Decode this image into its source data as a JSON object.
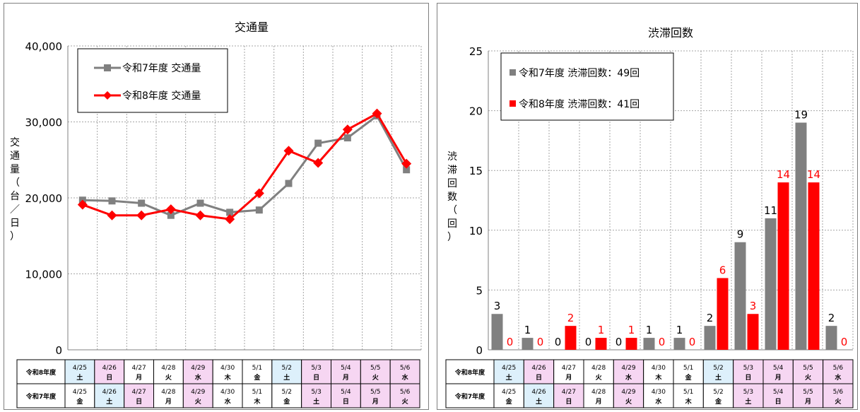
{
  "traffic_chart": {
    "title": "交通量",
    "ylabel": "交通量（台／日）",
    "legend": [
      "令和7年度 交通量",
      "令和8年度 交通量"
    ],
    "yticks": [
      "0",
      "10,000",
      "20,000",
      "30,000",
      "40,000"
    ]
  },
  "congestion_chart": {
    "title": "渋滞回数",
    "ylabel": "渋滞回数（回）",
    "legend": [
      "令和7年度 渋滞回数：49回",
      "令和8年度 渋滞回数：41回"
    ],
    "yticks": [
      "0",
      "5",
      "10",
      "15",
      "20",
      "25"
    ]
  },
  "date_table": {
    "row_labels": [
      "令和8年度",
      "令和7年度"
    ],
    "r8": [
      {
        "d": "4/25",
        "w": "土",
        "bg": "#ddf0fb"
      },
      {
        "d": "4/26",
        "w": "日",
        "bg": "#f6d6f2"
      },
      {
        "d": "4/27",
        "w": "月",
        "bg": "#ffffff"
      },
      {
        "d": "4/28",
        "w": "火",
        "bg": "#ffffff"
      },
      {
        "d": "4/29",
        "w": "水",
        "bg": "#f6d6f2"
      },
      {
        "d": "4/30",
        "w": "木",
        "bg": "#ffffff"
      },
      {
        "d": "5/1",
        "w": "金",
        "bg": "#ffffff"
      },
      {
        "d": "5/2",
        "w": "土",
        "bg": "#ddf0fb"
      },
      {
        "d": "5/3",
        "w": "日",
        "bg": "#f6d6f2"
      },
      {
        "d": "5/4",
        "w": "月",
        "bg": "#f6d6f2"
      },
      {
        "d": "5/5",
        "w": "火",
        "bg": "#f6d6f2"
      },
      {
        "d": "5/6",
        "w": "水",
        "bg": "#f6d6f2"
      }
    ],
    "r7": [
      {
        "d": "4/25",
        "w": "金",
        "bg": "#ffffff"
      },
      {
        "d": "4/26",
        "w": "土",
        "bg": "#ddf0fb"
      },
      {
        "d": "4/27",
        "w": "日",
        "bg": "#f6d6f2"
      },
      {
        "d": "4/28",
        "w": "月",
        "bg": "#ffffff"
      },
      {
        "d": "4/29",
        "w": "火",
        "bg": "#f6d6f2"
      },
      {
        "d": "4/30",
        "w": "水",
        "bg": "#ffffff"
      },
      {
        "d": "5/1",
        "w": "木",
        "bg": "#ffffff"
      },
      {
        "d": "5/2",
        "w": "金",
        "bg": "#ffffff"
      },
      {
        "d": "5/3",
        "w": "土",
        "bg": "#f6d6f2"
      },
      {
        "d": "5/4",
        "w": "日",
        "bg": "#f6d6f2"
      },
      {
        "d": "5/5",
        "w": "月",
        "bg": "#f6d6f2"
      },
      {
        "d": "5/6",
        "w": "火",
        "bg": "#f6d6f2"
      }
    ]
  },
  "colors": {
    "r7": "#808080",
    "r8": "#ff0000",
    "grid": "#a6a6a6"
  },
  "chart_data": [
    {
      "type": "line",
      "title": "交通量",
      "ylabel": "交通量（台／日）",
      "ylim": [
        0,
        40000
      ],
      "grid": true,
      "legend_position": "top-left",
      "series": [
        {
          "name": "令和7年度 交通量",
          "values": [
            19700,
            19600,
            19300,
            17700,
            19300,
            18100,
            18400,
            21900,
            27200,
            27900,
            30800,
            23700
          ]
        },
        {
          "name": "令和8年度 交通量",
          "values": [
            19100,
            17700,
            17700,
            18500,
            17700,
            17200,
            20600,
            26200,
            24600,
            29000,
            31100,
            24500
          ]
        }
      ]
    },
    {
      "type": "bar",
      "title": "渋滞回数",
      "ylabel": "渋滞回数（回）",
      "ylim": [
        0,
        25
      ],
      "grid": true,
      "legend_position": "top-left",
      "series": [
        {
          "name": "令和7年度 渋滞回数：49回",
          "values": [
            3,
            1,
            0,
            0,
            0,
            1,
            1,
            2,
            9,
            11,
            19,
            2
          ]
        },
        {
          "name": "令和8年度 渋滞回数：41回",
          "values": [
            0,
            0,
            2,
            1,
            1,
            0,
            0,
            6,
            3,
            14,
            14,
            0
          ]
        }
      ]
    }
  ]
}
